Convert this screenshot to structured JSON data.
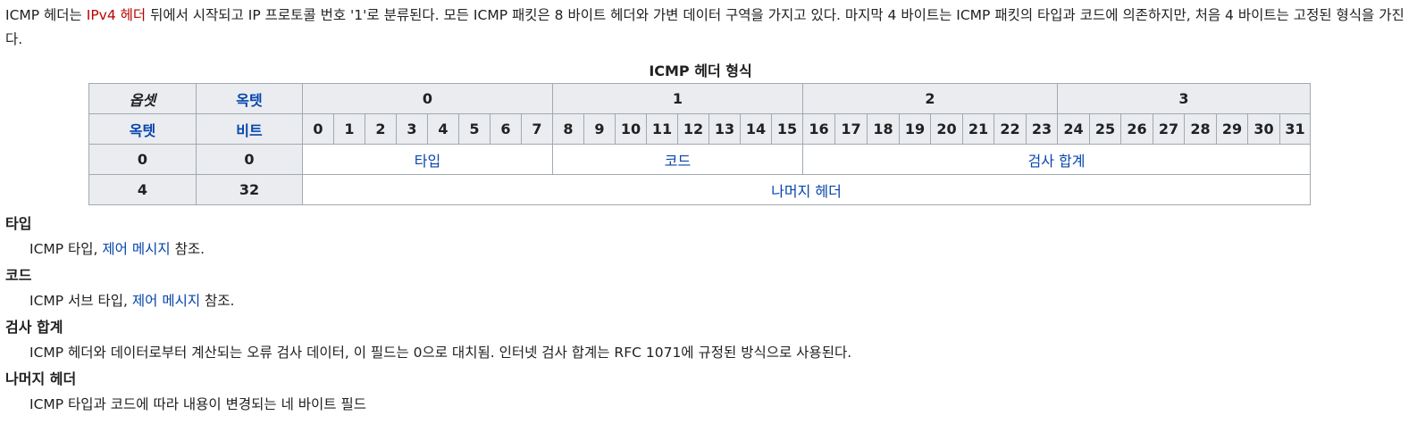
{
  "intro": {
    "part1": "ICMP 헤더는 ",
    "link1": "IPv4 헤더",
    "part2": " 뒤에서 시작되고 IP 프로토콜 번호 '1'로 분류된다. 모든 ICMP 패킷은 8 바이트 헤더와 가변 데이터 구역을 가지고 있다. 마지막 4 바이트는 ICMP 패킷의 타입과 코드에 의존하지만, 처음 4 바이트는 고정된 형식을 가진다."
  },
  "table": {
    "caption": "ICMP 헤더 형식",
    "corner_offset": "옵셋",
    "corner_octet": "옥텟",
    "row_octet": "옥텟",
    "row_bit": "비트",
    "octets": [
      "0",
      "1",
      "2",
      "3"
    ],
    "bits": [
      "0",
      "1",
      "2",
      "3",
      "4",
      "5",
      "6",
      "7",
      "8",
      "9",
      "10",
      "11",
      "12",
      "13",
      "14",
      "15",
      "16",
      "17",
      "18",
      "19",
      "20",
      "21",
      "22",
      "23",
      "24",
      "25",
      "26",
      "27",
      "28",
      "29",
      "30",
      "31"
    ],
    "rows": [
      {
        "octet": "0",
        "bit": "0",
        "type": "타입",
        "code": "코드",
        "checksum": "검사 합계"
      },
      {
        "octet": "4",
        "bit": "32",
        "rest": "나머지 헤더"
      }
    ]
  },
  "definitions": [
    {
      "term": "타입",
      "pre": "ICMP 타입, ",
      "link": "제어 메시지",
      "post": " 참조."
    },
    {
      "term": "코드",
      "pre": "ICMP 서브 타입, ",
      "link": "제어 메시지",
      "post": " 참조."
    },
    {
      "term": "검사 합계",
      "pre": "ICMP 헤더와 데이터로부터 계산되는 오류 검사 데이터, 이 필드는 0으로 대치됨. 인터넷 검사 합계는 RFC 1071에 규정된 방식으로 사용된다.",
      "link": "",
      "post": ""
    },
    {
      "term": "나머지 헤더",
      "pre": "ICMP 타입과 코드에 따라 내용이 변경되는 네 바이트 필드",
      "link": "",
      "post": ""
    }
  ]
}
